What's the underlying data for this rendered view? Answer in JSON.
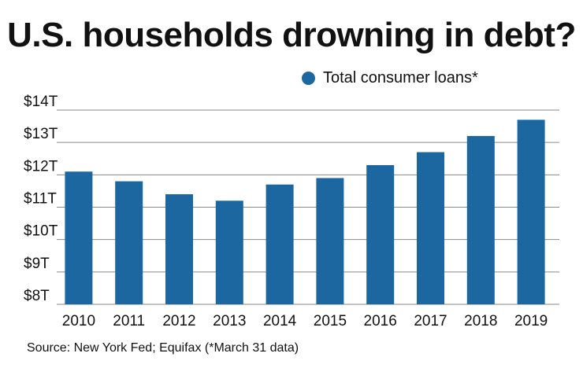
{
  "title": "U.S. households drowning in debt?",
  "source": "Source: New York Fed; Equifax (*March 31 data)",
  "colors": {
    "bar": "#1c67a0",
    "grid": "#8a8a8a",
    "text": "#111111"
  },
  "chart_data": {
    "type": "bar",
    "title": "U.S. households drowning in debt?",
    "xlabel": "",
    "ylabel": "",
    "legend": "top-right",
    "grid": true,
    "categories": [
      "2010",
      "2011",
      "2012",
      "2013",
      "2014",
      "2015",
      "2016",
      "2017",
      "2018",
      "2019"
    ],
    "series": [
      {
        "name": "Total consumer loans*",
        "values": [
          12.1,
          11.8,
          11.4,
          11.2,
          11.7,
          11.9,
          12.3,
          12.7,
          13.2,
          13.7
        ]
      }
    ],
    "ylim": [
      8,
      14
    ],
    "yticks": [
      8,
      9,
      10,
      11,
      12,
      13,
      14
    ],
    "ytick_labels": [
      "$8T",
      "$9T",
      "$10T",
      "$11T",
      "$12T",
      "$13T",
      "$14T"
    ]
  }
}
